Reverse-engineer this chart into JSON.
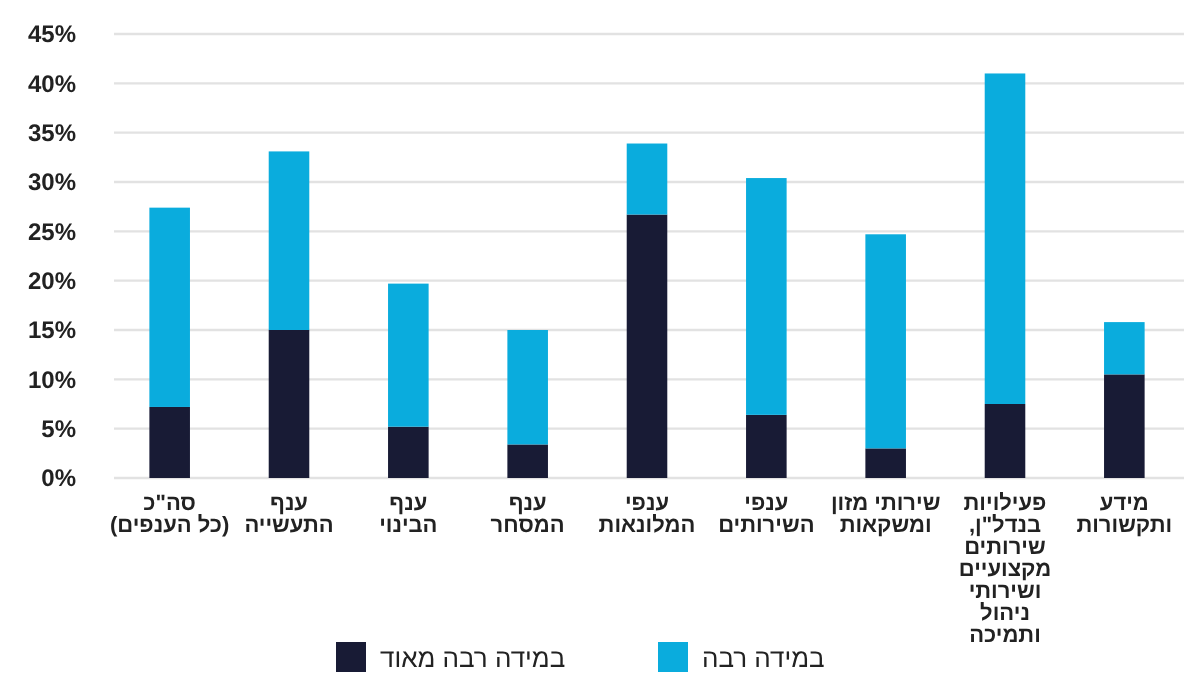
{
  "chart_data": {
    "type": "bar",
    "stacked": true,
    "categories": [
      "סה\"כ\n(כל הענפים)",
      "ענף\nהתעשייה",
      "ענף\nהבינוי",
      "ענף\nהמסחר",
      "ענפי\nהמלונאות",
      "ענפי\nהשירותים",
      "שירותי מזון\nומשקאות",
      "פעילויות\nבנדל\"ן,\nשירותים\nמקצועיים\nושירותי\nניהול\nותמיכה",
      "מידע\nותקשורות"
    ],
    "series": [
      {
        "name": "במידה רבה מאוד",
        "color": "#181b35",
        "values": [
          7.2,
          15,
          5.2,
          3.4,
          26.7,
          6.4,
          3,
          7.5,
          10.5
        ]
      },
      {
        "name": "במידה רבה",
        "color": "#0aacdd",
        "values": [
          20.2,
          18.1,
          14.5,
          11.6,
          7.2,
          24,
          21.7,
          33.5,
          5.3
        ]
      }
    ],
    "ylim": [
      0,
      45
    ],
    "yticks": [
      {
        "value": 0,
        "label": "0%"
      },
      {
        "value": 5,
        "label": "5%"
      },
      {
        "value": 10,
        "label": "10%"
      },
      {
        "value": 15,
        "label": "15%"
      },
      {
        "value": 20,
        "label": "20%"
      },
      {
        "value": 25,
        "label": "25%"
      },
      {
        "value": 30,
        "label": "30%"
      },
      {
        "value": 35,
        "label": "35%"
      },
      {
        "value": 40,
        "label": "40%"
      },
      {
        "value": 45,
        "label": "45%"
      }
    ],
    "grid": true,
    "legend": "bottom"
  }
}
